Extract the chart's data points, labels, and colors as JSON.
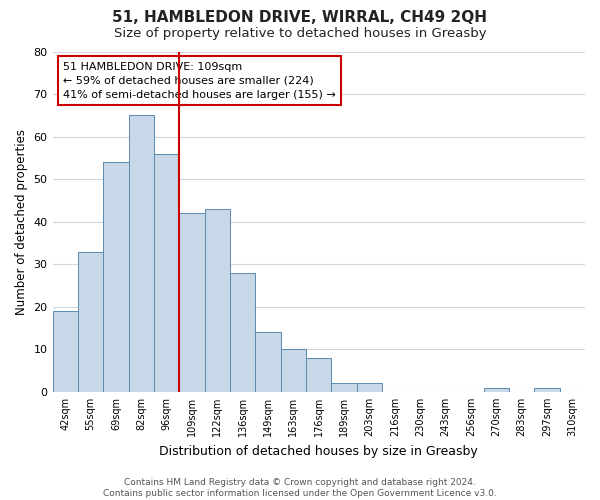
{
  "title": "51, HAMBLEDON DRIVE, WIRRAL, CH49 2QH",
  "subtitle": "Size of property relative to detached houses in Greasby",
  "xlabel": "Distribution of detached houses by size in Greasby",
  "ylabel": "Number of detached properties",
  "footer_line1": "Contains HM Land Registry data © Crown copyright and database right 2024.",
  "footer_line2": "Contains public sector information licensed under the Open Government Licence v3.0.",
  "bin_labels": [
    "42sqm",
    "55sqm",
    "69sqm",
    "82sqm",
    "96sqm",
    "109sqm",
    "122sqm",
    "136sqm",
    "149sqm",
    "163sqm",
    "176sqm",
    "189sqm",
    "203sqm",
    "216sqm",
    "230sqm",
    "243sqm",
    "256sqm",
    "270sqm",
    "283sqm",
    "297sqm",
    "310sqm"
  ],
  "bar_heights": [
    19,
    33,
    54,
    65,
    56,
    42,
    43,
    28,
    14,
    10,
    8,
    2,
    2,
    0,
    0,
    0,
    0,
    1,
    0,
    1,
    0
  ],
  "bar_color": "#c8d8e8",
  "bar_edge_color": "#5a8ab0",
  "vline_x_idx": 5,
  "vline_color": "#cc0000",
  "annotation_text": "51 HAMBLEDON DRIVE: 109sqm\n← 59% of detached houses are smaller (224)\n41% of semi-detached houses are larger (155) →",
  "annotation_box_edge_color": "#cc0000",
  "annotation_box_face_color": "#ffffff",
  "ylim": [
    0,
    80
  ],
  "yticks": [
    0,
    10,
    20,
    30,
    40,
    50,
    60,
    70,
    80
  ],
  "background_color": "#ffffff",
  "grid_color": "#d0d8e0",
  "title_fontsize": 11,
  "subtitle_fontsize": 9.5,
  "footer_fontsize": 6.5
}
